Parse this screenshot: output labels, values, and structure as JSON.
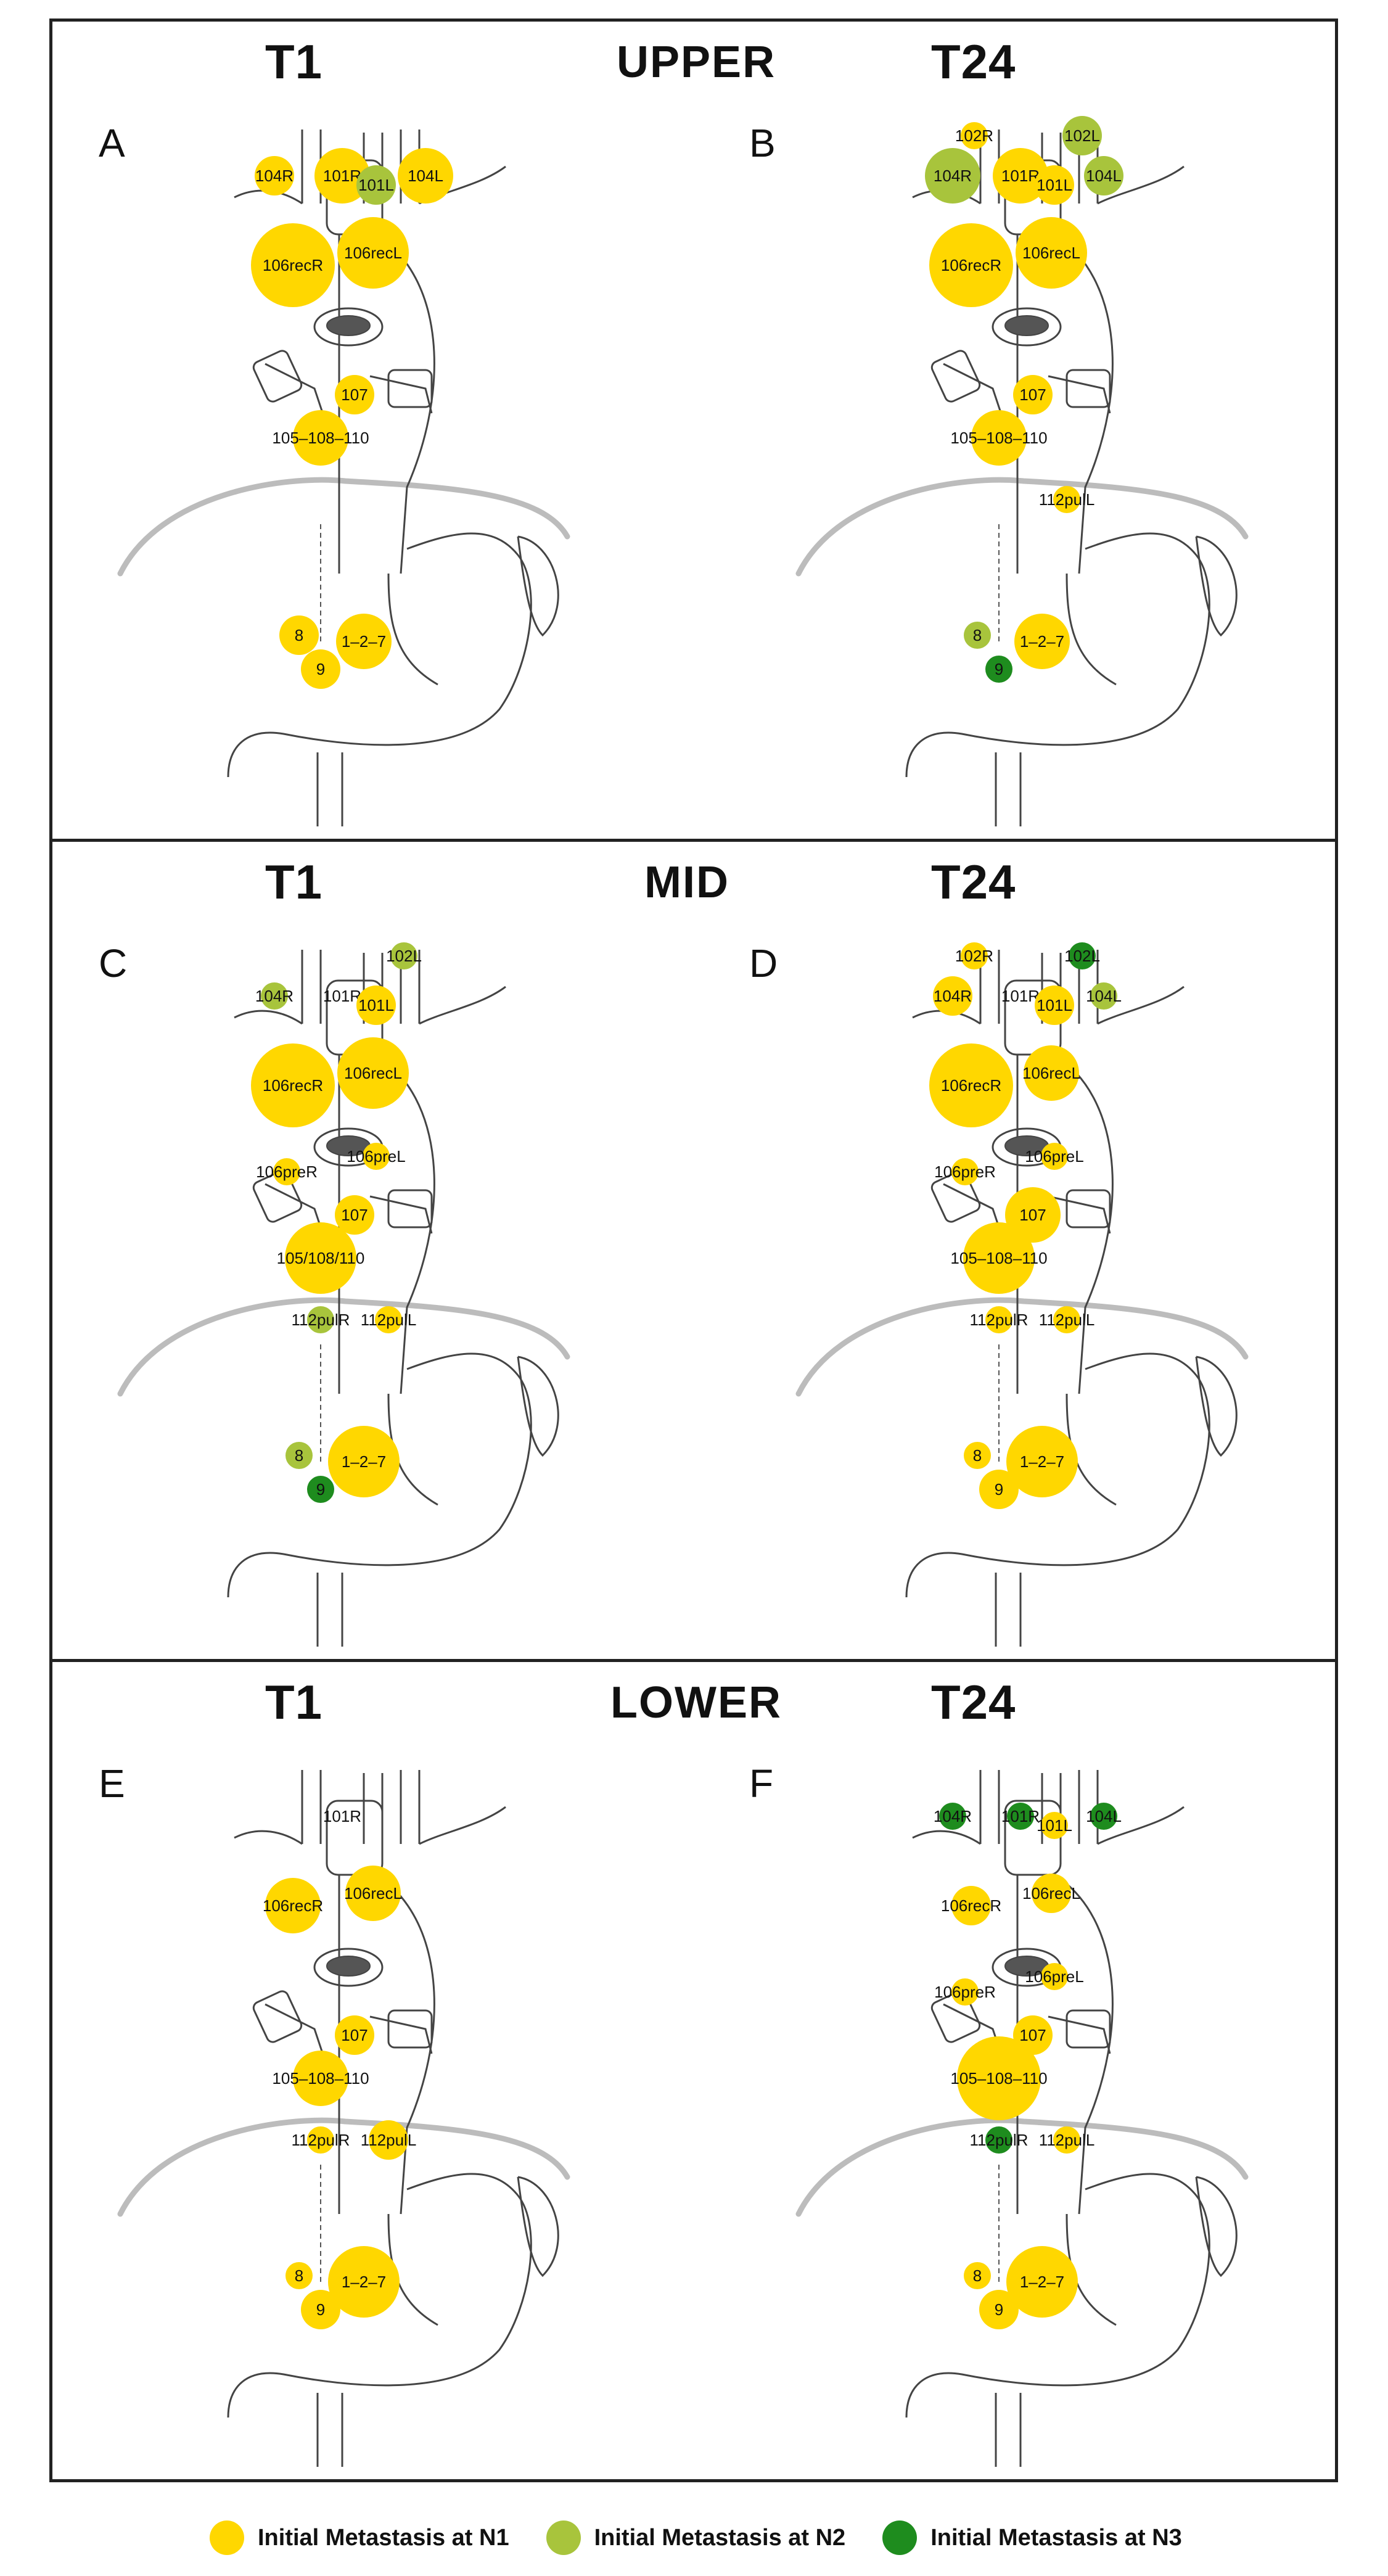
{
  "sections": [
    {
      "title": "UPPER",
      "columns": [
        "T1",
        "T24"
      ],
      "panels": [
        {
          "letter": "A",
          "nodes": [
            {
              "label": "104R",
              "level": "N1",
              "size": "s"
            },
            {
              "label": "101R",
              "level": "N1",
              "size": "m"
            },
            {
              "label": "101L",
              "level": "N2",
              "size": "s"
            },
            {
              "label": "104L",
              "level": "N1",
              "size": "m"
            },
            {
              "label": "106recR",
              "level": "N1",
              "size": "xl"
            },
            {
              "label": "106recL",
              "level": "N1",
              "size": "l"
            },
            {
              "label": "107",
              "level": "N1",
              "size": "s"
            },
            {
              "label": "105–108–110",
              "level": "N1",
              "size": "m"
            },
            {
              "label": "8",
              "level": "N1",
              "size": "s"
            },
            {
              "label": "9",
              "level": "N1",
              "size": "s"
            },
            {
              "label": "1–2–7",
              "level": "N1",
              "size": "m"
            }
          ]
        },
        {
          "letter": "B",
          "nodes": [
            {
              "label": "102R",
              "level": "N1",
              "size": "xs"
            },
            {
              "label": "102L",
              "level": "N2",
              "size": "s"
            },
            {
              "label": "104R",
              "level": "N2",
              "size": "m"
            },
            {
              "label": "101R",
              "level": "N1",
              "size": "m"
            },
            {
              "label": "101L",
              "level": "N1",
              "size": "s"
            },
            {
              "label": "104L",
              "level": "N2",
              "size": "s"
            },
            {
              "label": "106recR",
              "level": "N1",
              "size": "xl"
            },
            {
              "label": "106recL",
              "level": "N1",
              "size": "l"
            },
            {
              "label": "107",
              "level": "N1",
              "size": "s"
            },
            {
              "label": "105–108–110",
              "level": "N1",
              "size": "m"
            },
            {
              "label": "112pulL",
              "level": "N1",
              "size": "xs"
            },
            {
              "label": "8",
              "level": "N2",
              "size": "xs"
            },
            {
              "label": "9",
              "level": "N3",
              "size": "xs"
            },
            {
              "label": "1–2–7",
              "level": "N1",
              "size": "m"
            }
          ]
        }
      ]
    },
    {
      "title": "MID",
      "columns": [
        "T1",
        "T24"
      ],
      "panels": [
        {
          "letter": "C",
          "nodes": [
            {
              "label": "102L",
              "level": "N2",
              "size": "xs"
            },
            {
              "label": "104R",
              "level": "N2",
              "size": "xs"
            },
            {
              "label": "101R",
              "level": "none",
              "size": "s"
            },
            {
              "label": "101L",
              "level": "N1",
              "size": "s"
            },
            {
              "label": "106recR",
              "level": "N1",
              "size": "xl"
            },
            {
              "label": "106recL",
              "level": "N1",
              "size": "l"
            },
            {
              "label": "106preR",
              "level": "N1",
              "size": "xs"
            },
            {
              "label": "106preL",
              "level": "N1",
              "size": "xs"
            },
            {
              "label": "107",
              "level": "N1",
              "size": "s"
            },
            {
              "label": "105/108/110",
              "level": "N1",
              "size": "l"
            },
            {
              "label": "112pulR",
              "level": "N2",
              "size": "xs"
            },
            {
              "label": "112pulL",
              "level": "N1",
              "size": "xs"
            },
            {
              "label": "8",
              "level": "N2",
              "size": "xs"
            },
            {
              "label": "9",
              "level": "N3",
              "size": "xs"
            },
            {
              "label": "1–2–7",
              "level": "N1",
              "size": "l"
            }
          ]
        },
        {
          "letter": "D",
          "nodes": [
            {
              "label": "102R",
              "level": "N1",
              "size": "xs"
            },
            {
              "label": "102L",
              "level": "N3",
              "size": "xs"
            },
            {
              "label": "104R",
              "level": "N1",
              "size": "s"
            },
            {
              "label": "101R",
              "level": "none",
              "size": "s"
            },
            {
              "label": "101L",
              "level": "N1",
              "size": "s"
            },
            {
              "label": "104L",
              "level": "N2",
              "size": "xs"
            },
            {
              "label": "106recR",
              "level": "N1",
              "size": "xl"
            },
            {
              "label": "106recL",
              "level": "N1",
              "size": "m"
            },
            {
              "label": "106preR",
              "level": "N1",
              "size": "xs"
            },
            {
              "label": "106preL",
              "level": "N1",
              "size": "xs"
            },
            {
              "label": "107",
              "level": "N1",
              "size": "m"
            },
            {
              "label": "105–108–110",
              "level": "N1",
              "size": "l"
            },
            {
              "label": "112pulR",
              "level": "N1",
              "size": "xs"
            },
            {
              "label": "112pulL",
              "level": "N1",
              "size": "xs"
            },
            {
              "label": "8",
              "level": "N1",
              "size": "xs"
            },
            {
              "label": "9",
              "level": "N1",
              "size": "s"
            },
            {
              "label": "1–2–7",
              "level": "N1",
              "size": "l"
            }
          ]
        }
      ]
    },
    {
      "title": "LOWER",
      "columns": [
        "T1",
        "T24"
      ],
      "panels": [
        {
          "letter": "E",
          "nodes": [
            {
              "label": "101R",
              "level": "none",
              "size": "s"
            },
            {
              "label": "106recR",
              "level": "N1",
              "size": "m"
            },
            {
              "label": "106recL",
              "level": "N1",
              "size": "m"
            },
            {
              "label": "107",
              "level": "N1",
              "size": "s"
            },
            {
              "label": "105–108–110",
              "level": "N1",
              "size": "m"
            },
            {
              "label": "112pulR",
              "level": "N1",
              "size": "xs"
            },
            {
              "label": "112pulL",
              "level": "N1",
              "size": "s"
            },
            {
              "label": "8",
              "level": "N1",
              "size": "xs"
            },
            {
              "label": "9",
              "level": "N1",
              "size": "s"
            },
            {
              "label": "1–2–7",
              "level": "N1",
              "size": "l"
            }
          ]
        },
        {
          "letter": "F",
          "nodes": [
            {
              "label": "104R",
              "level": "N3",
              "size": "xs"
            },
            {
              "label": "101R",
              "level": "N3",
              "size": "xs"
            },
            {
              "label": "101L",
              "level": "N1",
              "size": "xs"
            },
            {
              "label": "104L",
              "level": "N3",
              "size": "xs"
            },
            {
              "label": "106recR",
              "level": "N1",
              "size": "s"
            },
            {
              "label": "106recL",
              "level": "N1",
              "size": "s"
            },
            {
              "label": "106preR",
              "level": "N1",
              "size": "xs"
            },
            {
              "label": "106preL",
              "level": "N1",
              "size": "xs"
            },
            {
              "label": "107",
              "level": "N1",
              "size": "s"
            },
            {
              "label": "105–108–110",
              "level": "N1",
              "size": "xl"
            },
            {
              "label": "112pulR",
              "level": "N3",
              "size": "xs"
            },
            {
              "label": "112pulL",
              "level": "N1",
              "size": "xs"
            },
            {
              "label": "8",
              "level": "N1",
              "size": "xs"
            },
            {
              "label": "9",
              "level": "N1",
              "size": "s"
            },
            {
              "label": "1–2–7",
              "level": "N1",
              "size": "l"
            }
          ]
        }
      ]
    }
  ],
  "legend": [
    {
      "level": "N1",
      "label": "Initial Metastasis at N1",
      "color": "#FFD700"
    },
    {
      "level": "N2",
      "label": "Initial Metastasis at N2",
      "color": "#A8C43C"
    },
    {
      "level": "N3",
      "label": "Initial Metastasis at N3",
      "color": "#1E8C1E"
    }
  ]
}
